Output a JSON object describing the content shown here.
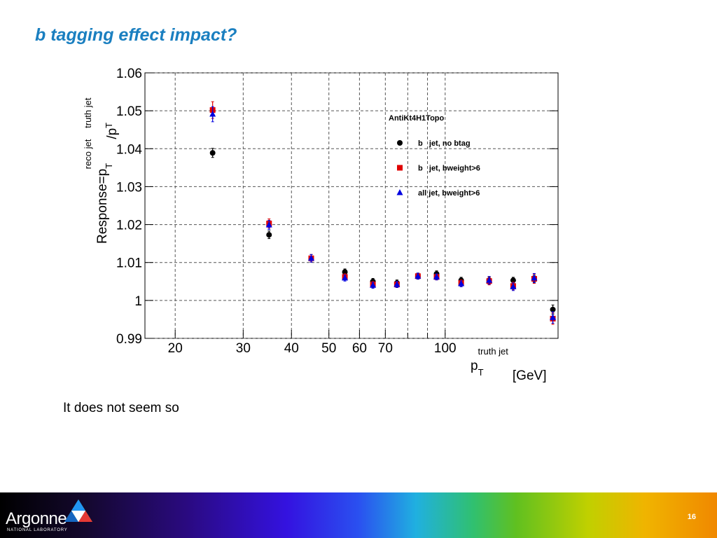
{
  "header": {
    "title": "b tagging effect impact?"
  },
  "body": {
    "text": "It does not seem so"
  },
  "footer": {
    "logo": "Argonne",
    "logo_subtitle": "NATIONAL LABORATORY",
    "page": "16"
  },
  "chart_data": {
    "type": "scatter",
    "ylabel_parts": [
      "Response=p",
      "T",
      "reco jet",
      "/p",
      "T",
      "truth jet"
    ],
    "xlabel_parts": [
      "p",
      "T",
      "truth jet",
      "[GeV]"
    ],
    "legend_title": "AntiKt4H1Topo",
    "x": [
      25,
      35,
      45,
      55,
      65,
      75,
      85,
      95,
      110,
      130,
      150,
      170,
      190
    ],
    "series": [
      {
        "name": "b   jet, no btag",
        "color": "#000000",
        "marker": "circle",
        "values": [
          1.0389,
          1.0173,
          1.0111,
          1.0075,
          1.005,
          1.0046,
          1.0064,
          1.007,
          1.0053,
          1.0053,
          1.0053,
          1.0059,
          0.9976
        ],
        "errors": [
          0.0012,
          0.001,
          0.001,
          0.0008,
          0.0008,
          0.0008,
          0.0008,
          0.0008,
          0.0008,
          0.001,
          0.0008,
          0.001,
          0.0012
        ]
      },
      {
        "name": "b   jet, bweight>6",
        "color": "#e00000",
        "marker": "square",
        "values": [
          1.0502,
          1.0203,
          1.0111,
          1.0062,
          1.0042,
          1.0042,
          1.0064,
          1.0062,
          1.0046,
          1.0051,
          1.0038,
          1.0057,
          0.9952
        ],
        "errors": [
          0.0022,
          0.0012,
          0.001,
          0.0008,
          0.0008,
          0.0008,
          0.0008,
          0.0008,
          0.0008,
          0.001,
          0.001,
          0.0012,
          0.0015
        ]
      },
      {
        "name": "all jet, bweight>6",
        "color": "#0000e0",
        "marker": "triangle",
        "values": [
          1.0491,
          1.0199,
          1.0111,
          1.0059,
          1.004,
          1.0042,
          1.0064,
          1.0062,
          1.0044,
          1.0053,
          1.0036,
          1.0059,
          0.9955
        ],
        "errors": [
          0.002,
          0.0012,
          0.001,
          0.0008,
          0.0008,
          0.0008,
          0.0008,
          0.0008,
          0.0008,
          0.001,
          0.001,
          0.0012,
          0.0015
        ]
      }
    ],
    "xlim": [
      16.7,
      196
    ],
    "xlog": true,
    "xticks": [
      20,
      30,
      40,
      50,
      60,
      70,
      100
    ],
    "xgrid_extra": [
      80,
      90
    ],
    "ylim": [
      0.99,
      1.06
    ],
    "yticks": [
      0.99,
      1,
      1.01,
      1.02,
      1.03,
      1.04,
      1.05,
      1.06
    ],
    "grid": true
  }
}
